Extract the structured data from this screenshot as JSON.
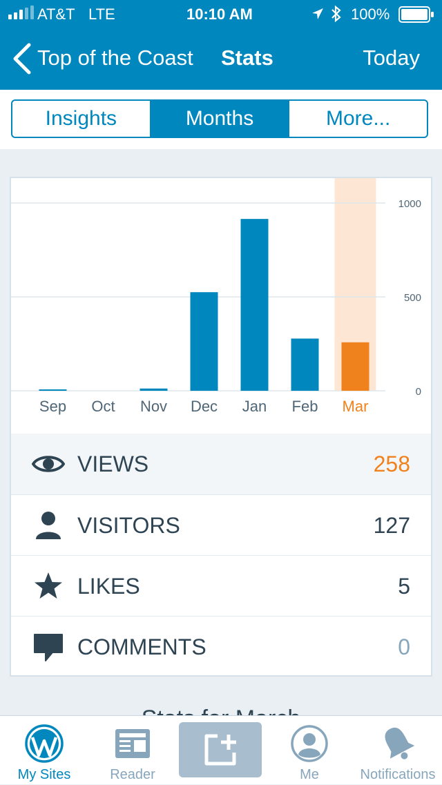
{
  "status_bar": {
    "carrier": "AT&T",
    "network": "LTE",
    "time": "10:10 AM",
    "battery": "100%"
  },
  "nav": {
    "site_name": "Top of the Coast",
    "title": "Stats",
    "period": "Today",
    "back_icon": "chevron-left-icon"
  },
  "segments": [
    {
      "label": "Insights",
      "active": false
    },
    {
      "label": "Months",
      "active": true
    },
    {
      "label": "More...",
      "active": false
    }
  ],
  "chart_data": {
    "type": "bar",
    "categories": [
      "Sep",
      "Oct",
      "Nov",
      "Dec",
      "Jan",
      "Feb",
      "Mar"
    ],
    "values": [
      5,
      0,
      12,
      525,
      915,
      278,
      258
    ],
    "selected_index": 6,
    "y_ticks": [
      "1000",
      "500",
      "0"
    ],
    "ylim": [
      0,
      1000
    ],
    "grid": true,
    "bar_color": "#0087be",
    "selected_color": "#f0821e",
    "highlight_color": "#fde6d4"
  },
  "stats": [
    {
      "label": "VIEWS",
      "value": "258",
      "icon": "eye-icon",
      "value_color": "#f0821e",
      "selected": true
    },
    {
      "label": "VISITORS",
      "value": "127",
      "icon": "person-icon",
      "value_color": "#2e4453",
      "selected": false
    },
    {
      "label": "LIKES",
      "value": "5",
      "icon": "star-icon",
      "value_color": "#2e4453",
      "selected": false
    },
    {
      "label": "COMMENTS",
      "value": "0",
      "icon": "comment-icon",
      "value_color": "#87a6bc",
      "selected": false
    }
  ],
  "peek_text": "Stats for March",
  "tabs": [
    {
      "label": "My Sites",
      "icon": "wordpress-icon",
      "active": true
    },
    {
      "label": "Reader",
      "icon": "reader-icon",
      "active": false
    },
    {
      "label": "",
      "icon": "new-post-icon",
      "active": false
    },
    {
      "label": "Me",
      "icon": "me-icon",
      "active": false
    },
    {
      "label": "Notifications",
      "icon": "bell-icon",
      "active": false
    }
  ]
}
